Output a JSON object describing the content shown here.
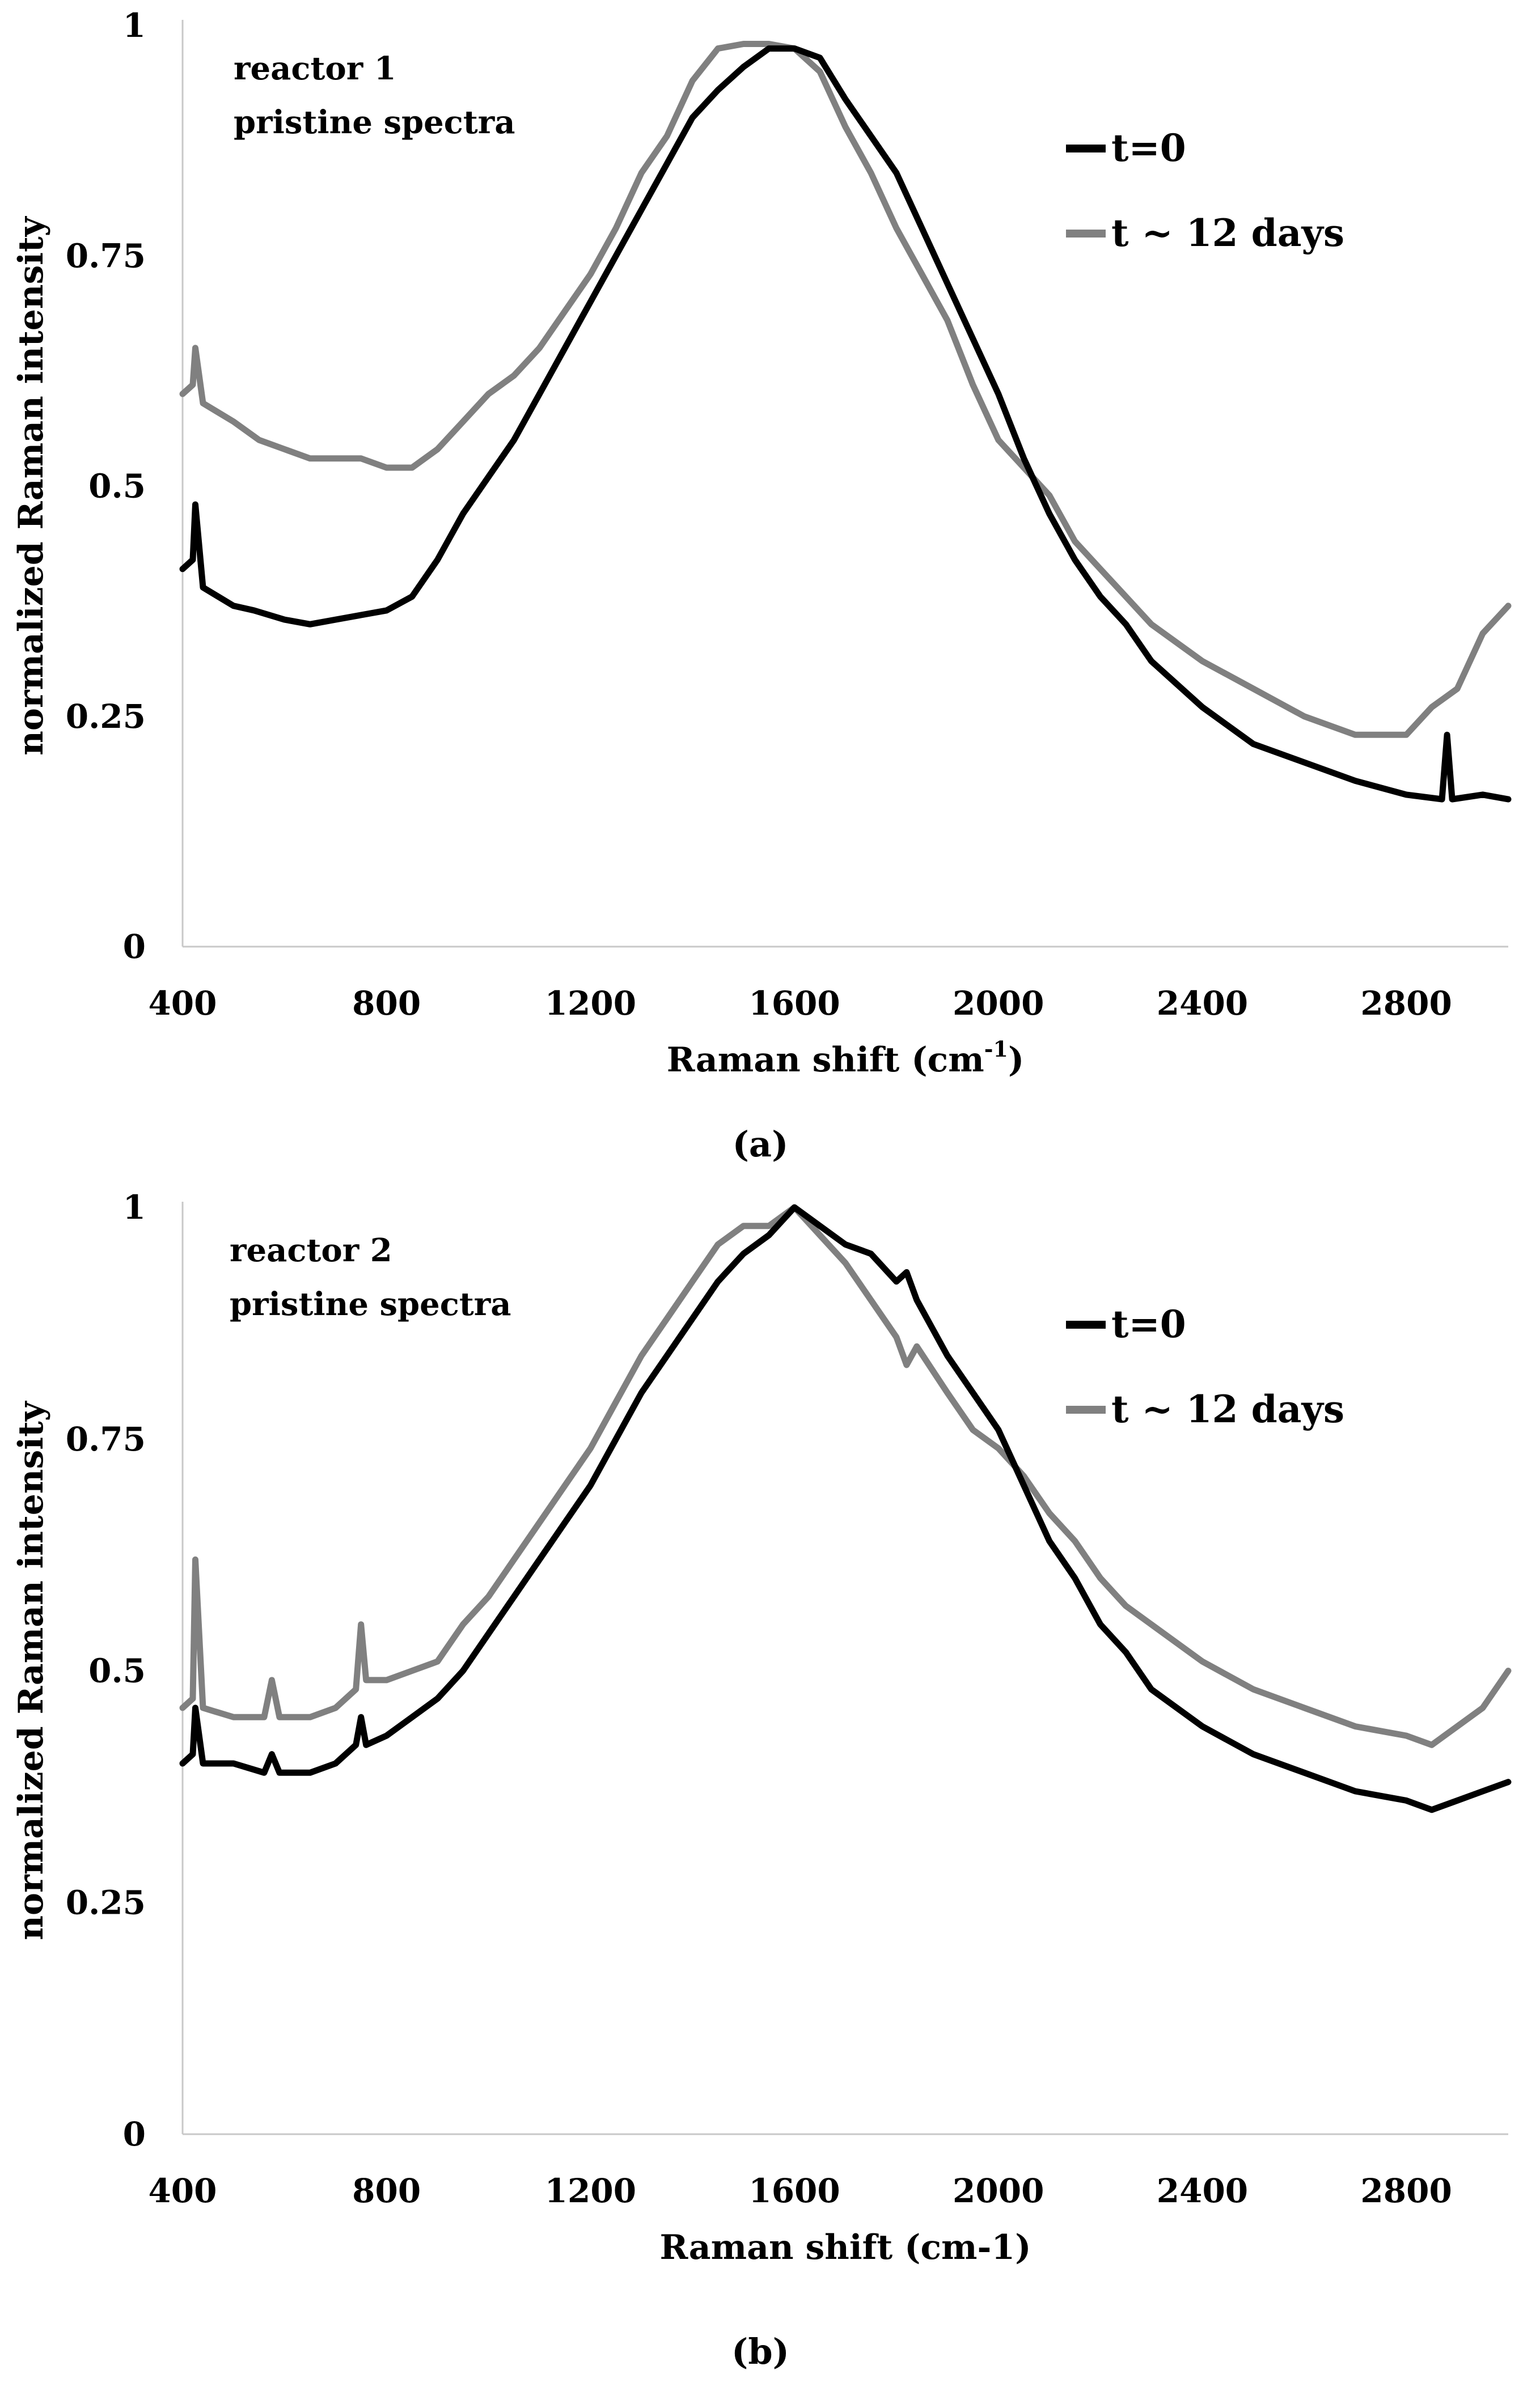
{
  "chart_data": [
    {
      "type": "line",
      "panel_label": "(a)",
      "title": "",
      "annotation": [
        "reactor 1",
        "pristine spectra"
      ],
      "xlabel": "Raman shift (cm",
      "xlabel_sup": "-1",
      "xlabel_end": ")",
      "ylabel": "normalized Raman intensity",
      "xlim": [
        400,
        3000
      ],
      "ylim": [
        0,
        1
      ],
      "xticks": [
        400,
        800,
        1200,
        1600,
        2000,
        2400,
        2800
      ],
      "yticks": [
        0,
        0.25,
        0.5,
        0.75,
        1
      ],
      "ytick_labels": [
        "0",
        "0.25",
        "0.5",
        "0.75",
        "1"
      ],
      "legend_position": "top-right",
      "series": [
        {
          "name": "t=0",
          "color": "#000000",
          "x": [
            400,
            420,
            425,
            440,
            500,
            540,
            600,
            650,
            700,
            750,
            800,
            850,
            900,
            950,
            1000,
            1050,
            1100,
            1150,
            1200,
            1250,
            1300,
            1350,
            1400,
            1450,
            1500,
            1550,
            1600,
            1650,
            1700,
            1750,
            1800,
            1850,
            1900,
            1950,
            2000,
            2050,
            2100,
            2150,
            2200,
            2250,
            2300,
            2400,
            2500,
            2600,
            2700,
            2800,
            2870,
            2880,
            2890,
            2950,
            3000
          ],
          "y": [
            0.41,
            0.42,
            0.48,
            0.39,
            0.37,
            0.365,
            0.355,
            0.35,
            0.355,
            0.36,
            0.365,
            0.38,
            0.42,
            0.47,
            0.51,
            0.55,
            0.6,
            0.65,
            0.7,
            0.75,
            0.8,
            0.85,
            0.9,
            0.93,
            0.955,
            0.975,
            0.975,
            0.965,
            0.92,
            0.88,
            0.84,
            0.78,
            0.72,
            0.66,
            0.6,
            0.53,
            0.47,
            0.42,
            0.38,
            0.35,
            0.31,
            0.26,
            0.22,
            0.2,
            0.18,
            0.165,
            0.16,
            0.23,
            0.16,
            0.165,
            0.16
          ]
        },
        {
          "name": "t ~ 12 days",
          "color": "#808080",
          "x": [
            400,
            420,
            425,
            440,
            500,
            550,
            600,
            650,
            700,
            750,
            800,
            850,
            900,
            950,
            1000,
            1050,
            1100,
            1150,
            1200,
            1250,
            1300,
            1350,
            1400,
            1450,
            1500,
            1550,
            1600,
            1650,
            1700,
            1750,
            1800,
            1850,
            1900,
            1950,
            2000,
            2050,
            2100,
            2150,
            2200,
            2250,
            2300,
            2400,
            2500,
            2600,
            2700,
            2800,
            2850,
            2900,
            2950,
            3000
          ],
          "y": [
            0.6,
            0.61,
            0.65,
            0.59,
            0.57,
            0.55,
            0.54,
            0.53,
            0.53,
            0.53,
            0.52,
            0.52,
            0.54,
            0.57,
            0.6,
            0.62,
            0.65,
            0.69,
            0.73,
            0.78,
            0.84,
            0.88,
            0.94,
            0.975,
            0.98,
            0.98,
            0.975,
            0.95,
            0.89,
            0.84,
            0.78,
            0.73,
            0.68,
            0.61,
            0.55,
            0.52,
            0.49,
            0.44,
            0.41,
            0.38,
            0.35,
            0.31,
            0.28,
            0.25,
            0.23,
            0.23,
            0.26,
            0.28,
            0.34,
            0.37
          ]
        }
      ]
    },
    {
      "type": "line",
      "panel_label": "(b)",
      "title": "",
      "annotation": [
        "reactor 2",
        "pristine spectra"
      ],
      "xlabel": "Raman shift (cm-1)",
      "xlabel_sup": "",
      "xlabel_end": "",
      "ylabel": "normalized Raman intensity",
      "xlim": [
        400,
        3000
      ],
      "ylim": [
        0,
        1
      ],
      "xticks": [
        400,
        800,
        1200,
        1600,
        2000,
        2400,
        2800
      ],
      "yticks": [
        0,
        0.25,
        0.5,
        0.75,
        1
      ],
      "ytick_labels": [
        "0",
        "0.25",
        "0.5",
        "0.75",
        "1"
      ],
      "legend_position": "top-right",
      "series": [
        {
          "name": "t=0",
          "color": "#000000",
          "x": [
            400,
            420,
            425,
            440,
            500,
            560,
            575,
            590,
            650,
            700,
            740,
            750,
            760,
            800,
            850,
            900,
            950,
            1000,
            1050,
            1100,
            1150,
            1200,
            1250,
            1300,
            1350,
            1400,
            1450,
            1500,
            1550,
            1600,
            1650,
            1700,
            1750,
            1800,
            1820,
            1840,
            1900,
            1950,
            2000,
            2050,
            2100,
            2150,
            2200,
            2250,
            2300,
            2400,
            2500,
            2600,
            2700,
            2800,
            2850,
            2900,
            2950,
            3000
          ],
          "y": [
            0.4,
            0.41,
            0.46,
            0.4,
            0.4,
            0.39,
            0.41,
            0.39,
            0.39,
            0.4,
            0.42,
            0.45,
            0.42,
            0.43,
            0.45,
            0.47,
            0.5,
            0.54,
            0.58,
            0.62,
            0.66,
            0.7,
            0.75,
            0.8,
            0.84,
            0.88,
            0.92,
            0.95,
            0.97,
            1.0,
            0.98,
            0.96,
            0.95,
            0.92,
            0.93,
            0.9,
            0.84,
            0.8,
            0.76,
            0.7,
            0.64,
            0.6,
            0.55,
            0.52,
            0.48,
            0.44,
            0.41,
            0.39,
            0.37,
            0.36,
            0.35,
            0.36,
            0.37,
            0.38
          ]
        },
        {
          "name": "t ~ 12 days",
          "color": "#808080",
          "x": [
            400,
            420,
            425,
            440,
            500,
            560,
            575,
            590,
            650,
            700,
            740,
            750,
            760,
            800,
            850,
            900,
            950,
            1000,
            1050,
            1100,
            1150,
            1200,
            1250,
            1300,
            1350,
            1400,
            1450,
            1500,
            1550,
            1600,
            1650,
            1700,
            1750,
            1800,
            1820,
            1840,
            1900,
            1950,
            2000,
            2050,
            2100,
            2150,
            2200,
            2250,
            2300,
            2400,
            2500,
            2600,
            2700,
            2800,
            2850,
            2900,
            2950,
            3000
          ],
          "y": [
            0.46,
            0.47,
            0.62,
            0.46,
            0.45,
            0.45,
            0.49,
            0.45,
            0.45,
            0.46,
            0.48,
            0.55,
            0.49,
            0.49,
            0.5,
            0.51,
            0.55,
            0.58,
            0.62,
            0.66,
            0.7,
            0.74,
            0.79,
            0.84,
            0.88,
            0.92,
            0.96,
            0.98,
            0.98,
            1.0,
            0.97,
            0.94,
            0.9,
            0.86,
            0.83,
            0.85,
            0.8,
            0.76,
            0.74,
            0.71,
            0.67,
            0.64,
            0.6,
            0.57,
            0.55,
            0.51,
            0.48,
            0.46,
            0.44,
            0.43,
            0.42,
            0.44,
            0.46,
            0.5
          ]
        }
      ]
    }
  ]
}
